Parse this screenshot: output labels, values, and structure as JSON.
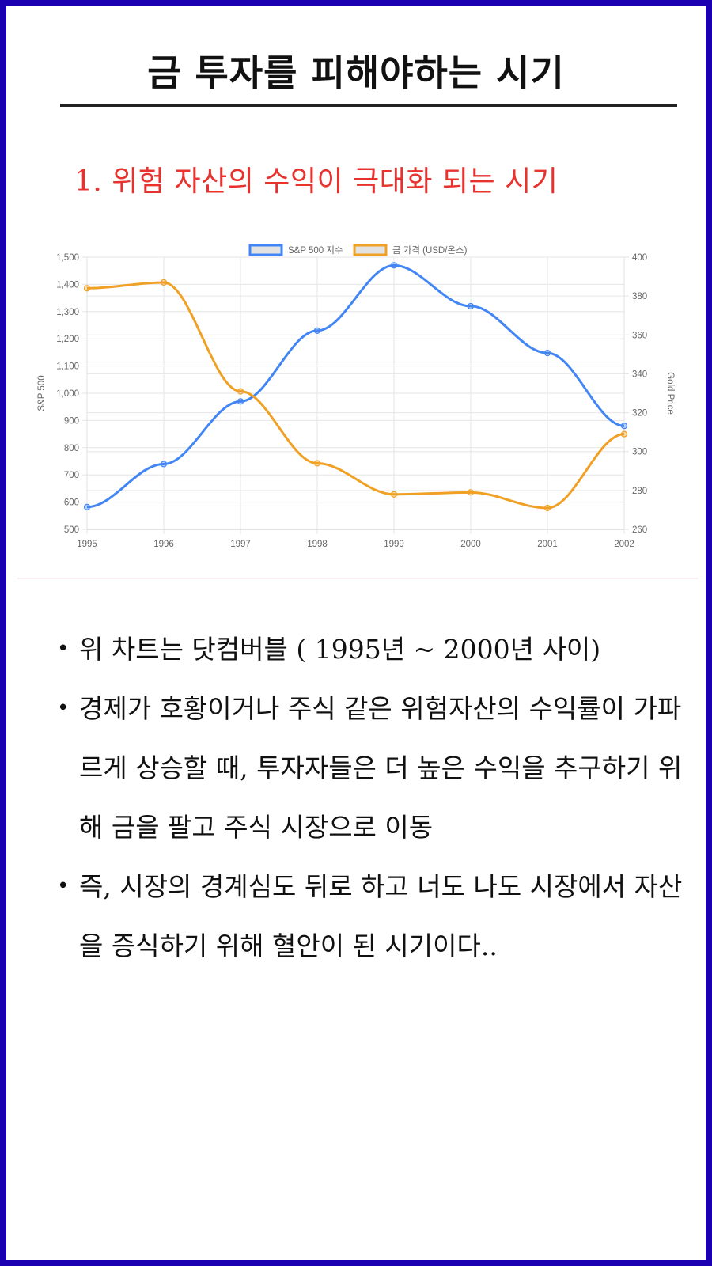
{
  "page": {
    "title": "금 투자를 피해야하는 시기",
    "subtitle": "1. 위험 자산의 수익이 극대화 되는 시기",
    "border_color": "#1a00b0",
    "subtitle_color": "#e8322e"
  },
  "bullets": [
    {
      "symbol": "•",
      "text": "위 차트는 닷컴버블 ( 1995년 ~ 2000년 사이)"
    },
    {
      "symbol": "•",
      "text": "경제가 호황이거나 주식 같은 위험자산의 수익률이 가파르게 상승할 때, 투자자들은 더 높은 수익을 추구하기 위해 금을 팔고 주식 시장으로 이동"
    },
    {
      "symbol": "•",
      "text": "즉, 시장의 경계심도 뒤로 하고 너도 나도 시장에서 자산을 증식하기 위해 혈안이 된 시기이다.."
    }
  ],
  "chart_data": {
    "type": "line",
    "title": "",
    "categories": [
      "1995",
      "1996",
      "1997",
      "1998",
      "1999",
      "2000",
      "2001",
      "2002"
    ],
    "series": [
      {
        "name": "S&P 500 지수",
        "axis": "left",
        "color": "#4285f4",
        "values": [
          582,
          740,
          970,
          1230,
          1470,
          1320,
          1148,
          880
        ]
      },
      {
        "name": "금 가격 (USD/온스)",
        "axis": "right",
        "color": "#f0a024",
        "values": [
          384,
          387,
          331,
          294,
          278,
          279,
          271,
          309
        ]
      }
    ],
    "xlabel": "",
    "ylabel": "S&P 500",
    "y2label": "Gold Price",
    "ylim": [
      500,
      1500
    ],
    "y2lim": [
      260,
      400
    ],
    "yticks": [
      "500",
      "600",
      "700",
      "800",
      "900",
      "1,000",
      "1,100",
      "1,200",
      "1,300",
      "1,400",
      "1,500"
    ],
    "y2ticks": [
      "260",
      "280",
      "300",
      "320",
      "340",
      "360",
      "380",
      "400"
    ],
    "legend_position": "top",
    "grid": true
  }
}
